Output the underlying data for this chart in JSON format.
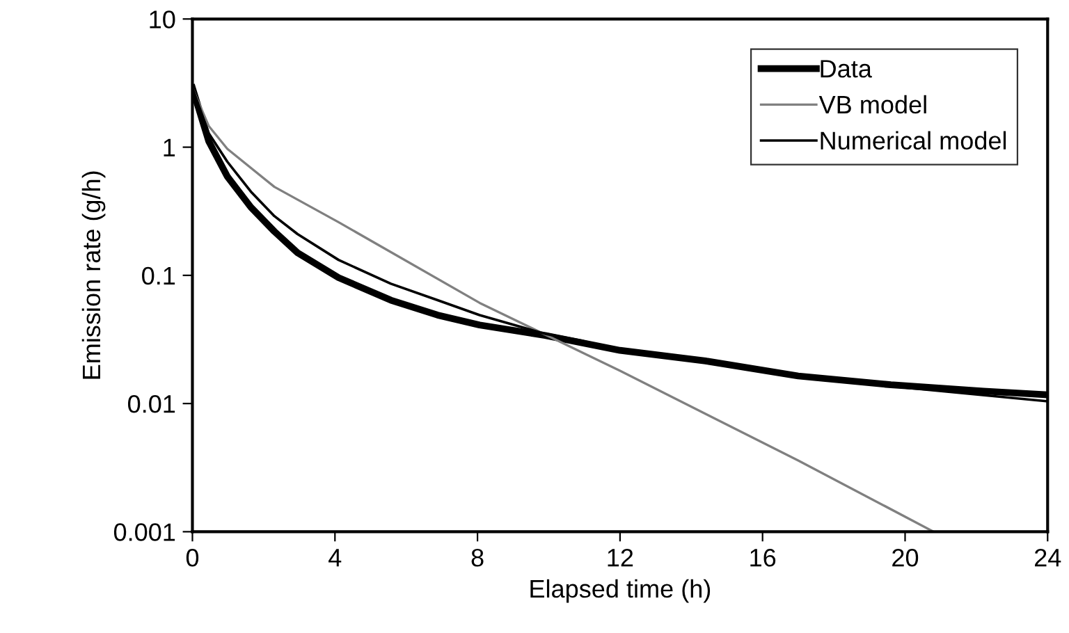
{
  "chart_data": {
    "type": "line",
    "xlabel": "Elapsed time (h)",
    "ylabel": "Emission rate (g/h)",
    "log": "y",
    "xlim": [
      0,
      24
    ],
    "xticks": [
      0,
      4,
      8,
      12,
      16,
      20,
      24
    ],
    "ylim": [
      0.001,
      10
    ],
    "yticks": [
      {
        "value": 0.001,
        "label": "0.001"
      },
      {
        "value": 0.01,
        "label": "0.01"
      },
      {
        "value": 0.1,
        "label": "0.1"
      },
      {
        "value": 1,
        "label": "1"
      },
      {
        "value": 10,
        "label": "10"
      }
    ],
    "grid": false,
    "legend": "top right",
    "line_style": "solid",
    "marker": "none",
    "series": [
      {
        "name": "Data",
        "color": "#000000",
        "x": [
          0,
          0.46,
          0.98,
          1.64,
          2.3,
          2.95,
          4.1,
          5.57,
          6.88,
          8.06,
          9.9,
          12.0,
          14.4,
          17.0,
          19.6,
          22.2,
          24
        ],
        "values": [
          2.9,
          1.11,
          0.59,
          0.34,
          0.22,
          0.15,
          0.096,
          0.064,
          0.049,
          0.041,
          0.034,
          0.026,
          0.0215,
          0.0164,
          0.014,
          0.0125,
          0.0117
        ]
      },
      {
        "name": "VB model",
        "color": "#808080",
        "x": [
          0,
          0.46,
          0.98,
          2.3,
          4.1,
          8.06,
          12.0,
          17.0,
          20.8
        ],
        "values": [
          2.9,
          1.46,
          0.97,
          0.49,
          0.26,
          0.061,
          0.018,
          0.0036,
          0.001
        ]
      },
      {
        "name": "Numerical model",
        "color": "#000000",
        "x": [
          0,
          0.46,
          0.98,
          1.64,
          2.3,
          2.95,
          4.1,
          5.57,
          6.88,
          8.06,
          9.9,
          10.9,
          12.0,
          14.4,
          17.0,
          20.0,
          24
        ],
        "values": [
          2.9,
          1.28,
          0.77,
          0.45,
          0.29,
          0.21,
          0.132,
          0.086,
          0.064,
          0.049,
          0.035,
          0.031,
          0.026,
          0.0215,
          0.0164,
          0.0133,
          0.0104
        ]
      }
    ]
  }
}
